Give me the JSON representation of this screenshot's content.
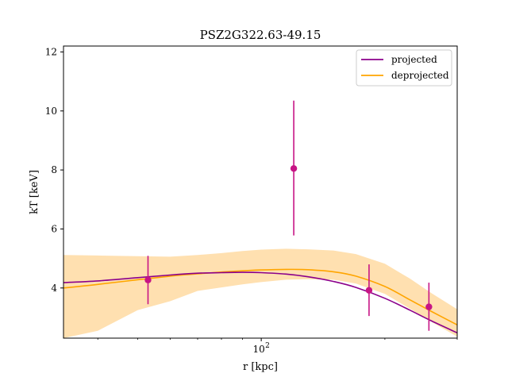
{
  "chart_data": {
    "type": "line",
    "title": "PSZ2G322.63-49.15",
    "xlabel": "r [kpc]",
    "ylabel": "kT [keV]",
    "xscale": "log",
    "xlim": [
      33,
      300
    ],
    "ylim": [
      2.3,
      12.2
    ],
    "x_ticks": [
      {
        "value": 100,
        "label": "10",
        "exp": "2"
      }
    ],
    "y_ticks": [
      {
        "value": 4,
        "label": "4"
      },
      {
        "value": 6,
        "label": "6"
      },
      {
        "value": 8,
        "label": "8"
      },
      {
        "value": 10,
        "label": "10"
      },
      {
        "value": 12,
        "label": "12"
      }
    ],
    "legend_position": "top-right",
    "grid": false,
    "series": [
      {
        "name": "projected",
        "color": "#8b008b",
        "x": [
          33,
          40,
          50,
          60,
          70,
          80,
          90,
          100,
          115,
          130,
          150,
          170,
          200,
          230,
          260,
          300
        ],
        "y": [
          4.18,
          4.24,
          4.35,
          4.44,
          4.5,
          4.52,
          4.53,
          4.52,
          4.47,
          4.38,
          4.22,
          4.02,
          3.65,
          3.25,
          2.88,
          2.48
        ]
      },
      {
        "name": "deprojected",
        "color": "#ffa500",
        "band_color": "#ffe0b0",
        "x": [
          33,
          40,
          50,
          60,
          70,
          80,
          90,
          100,
          115,
          130,
          150,
          170,
          200,
          230,
          260,
          300
        ],
        "y": [
          4.0,
          4.12,
          4.28,
          4.4,
          4.48,
          4.54,
          4.58,
          4.61,
          4.63,
          4.62,
          4.55,
          4.4,
          4.05,
          3.6,
          3.2,
          2.75
        ],
        "lower": [
          2.3,
          2.55,
          3.25,
          3.55,
          3.9,
          4.02,
          4.12,
          4.2,
          4.28,
          4.3,
          4.28,
          4.15,
          3.8,
          3.3,
          2.85,
          2.35
        ],
        "upper": [
          5.12,
          5.1,
          5.08,
          5.06,
          5.12,
          5.18,
          5.25,
          5.3,
          5.33,
          5.31,
          5.27,
          5.15,
          4.82,
          4.32,
          3.82,
          3.28
        ]
      }
    ],
    "points": {
      "name": "data",
      "color": "#c71585",
      "x": [
        53,
        120,
        183,
        256
      ],
      "y": [
        4.27,
        8.05,
        3.92,
        3.36
      ],
      "yerr_low": [
        0.82,
        2.27,
        0.87,
        0.81
      ],
      "yerr_high": [
        0.82,
        2.3,
        0.88,
        0.82
      ]
    }
  }
}
